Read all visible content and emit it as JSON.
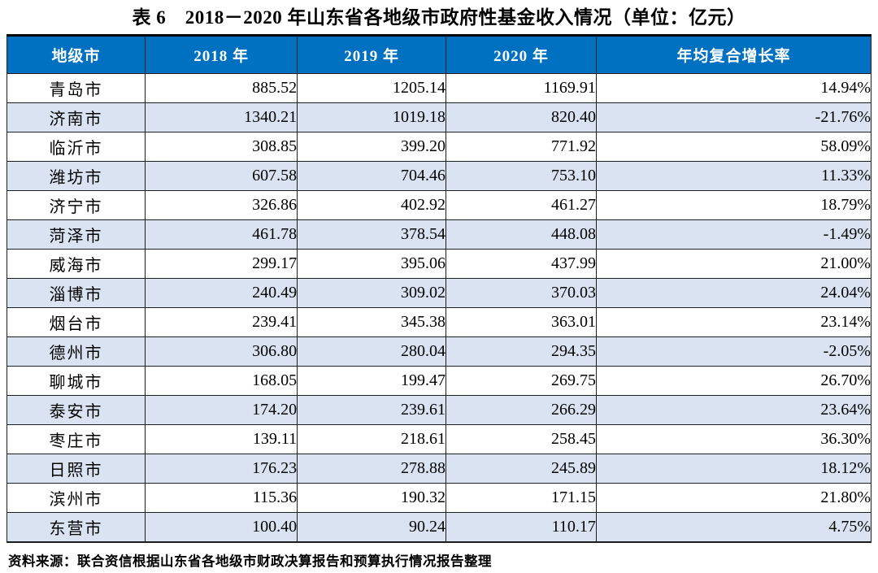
{
  "title": "表 6　2018－2020 年山东省各地级市政府性基金收入情况（单位：亿元）",
  "source_note": "资料来源：联合资信根据山东省各地级市财政决算报告和预算执行情况报告整理",
  "colors": {
    "header_bg": "#0070C0",
    "header_text": "#FFFFFF",
    "row_alt_bg": "#DAE3F1",
    "row_plain_bg": "#FFFFFF",
    "border": "#1D1D1D"
  },
  "chart_data": {
    "type": "table",
    "columns": [
      "地级市",
      "2018 年",
      "2019 年",
      "2020 年",
      "年均复合增长率"
    ],
    "rows": [
      [
        "青岛市",
        "885.52",
        "1205.14",
        "1169.91",
        "14.94%"
      ],
      [
        "济南市",
        "1340.21",
        "1019.18",
        "820.40",
        "-21.76%"
      ],
      [
        "临沂市",
        "308.85",
        "399.20",
        "771.92",
        "58.09%"
      ],
      [
        "潍坊市",
        "607.58",
        "704.46",
        "753.10",
        "11.33%"
      ],
      [
        "济宁市",
        "326.86",
        "402.92",
        "461.27",
        "18.79%"
      ],
      [
        "菏泽市",
        "461.78",
        "378.54",
        "448.08",
        "-1.49%"
      ],
      [
        "威海市",
        "299.17",
        "395.06",
        "437.99",
        "21.00%"
      ],
      [
        "淄博市",
        "240.49",
        "309.02",
        "370.03",
        "24.04%"
      ],
      [
        "烟台市",
        "239.41",
        "345.38",
        "363.01",
        "23.14%"
      ],
      [
        "德州市",
        "306.80",
        "280.04",
        "294.35",
        "-2.05%"
      ],
      [
        "聊城市",
        "168.05",
        "199.47",
        "269.75",
        "26.70%"
      ],
      [
        "泰安市",
        "174.20",
        "239.61",
        "266.29",
        "23.64%"
      ],
      [
        "枣庄市",
        "139.11",
        "218.61",
        "258.45",
        "36.30%"
      ],
      [
        "日照市",
        "176.23",
        "278.88",
        "245.89",
        "18.12%"
      ],
      [
        "滨州市",
        "115.36",
        "190.32",
        "171.15",
        "21.80%"
      ],
      [
        "东营市",
        "100.40",
        "90.24",
        "110.17",
        "4.75%"
      ]
    ]
  }
}
